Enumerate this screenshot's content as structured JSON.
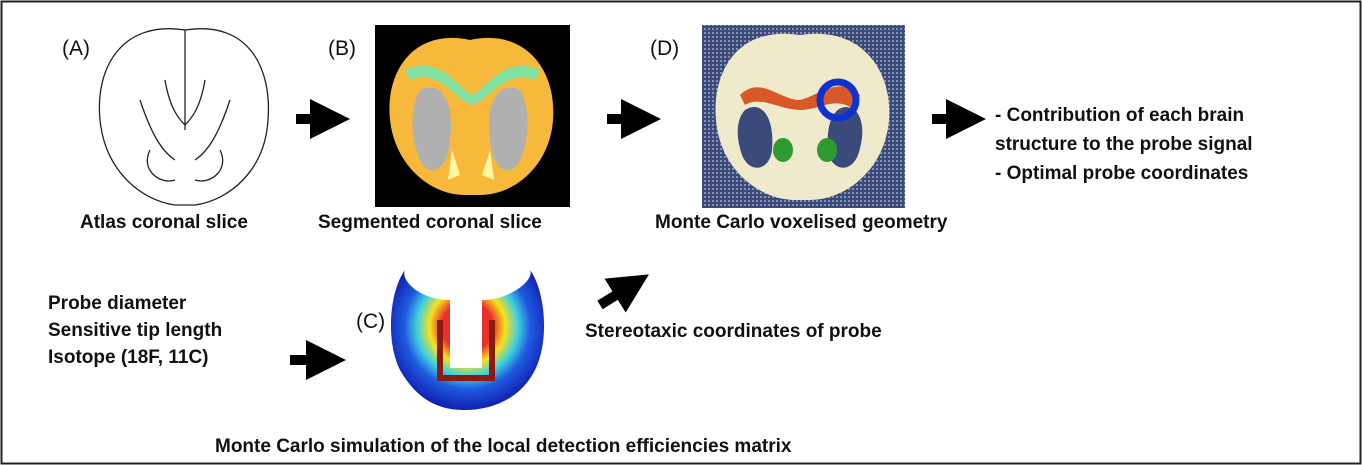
{
  "panels": [
    {
      "label": "(A)",
      "caption": "Atlas coronal slice"
    },
    {
      "label": "(B)",
      "caption": "Segmented coronal slice"
    },
    {
      "label": "(C)",
      "caption": "Monte Carlo simulation of the local detection efficiencies matrix"
    },
    {
      "label": "(D)",
      "caption": "Monte Carlo voxelised geometry"
    }
  ],
  "inputs": [
    "Probe diameter",
    "Sensitive tip length",
    "Isotope (18F, 11C)"
  ],
  "probe_input": "Stereotaxic coordinates of probe",
  "outputs": [
    "- Contribution of each brain",
    "structure to the probe signal",
    "- Optimal probe coordinates"
  ]
}
